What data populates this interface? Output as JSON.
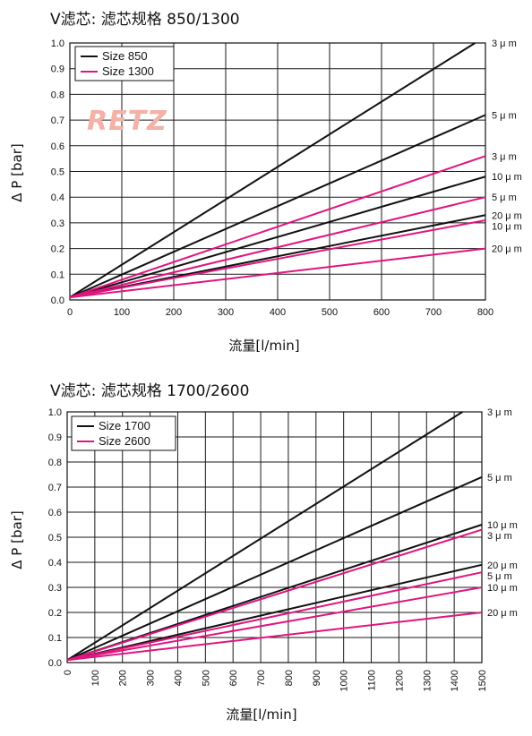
{
  "watermark": "RETZ",
  "colors": {
    "black": "#111111",
    "magenta": "#e0157f",
    "grid": "#1a1a1a",
    "watermark": "#f4b1a7"
  },
  "chart_data": [
    {
      "type": "line",
      "title": "V滤芯: 滤芯规格 850/1300",
      "xlabel": "流量[l/min]",
      "ylabel": "Δ P [bar]",
      "xlim": [
        0,
        800
      ],
      "ylim": [
        0,
        1.0
      ],
      "x_ticks": [
        "0",
        "100",
        "200",
        "300",
        "400",
        "500",
        "600",
        "700",
        "800"
      ],
      "y_ticks": [
        "0.0",
        "0.1",
        "0.2",
        "0.3",
        "0.4",
        "0.5",
        "0.6",
        "0.7",
        "0.8",
        "0.9",
        "1.0"
      ],
      "grid": true,
      "legend_position": "top-left",
      "legend": [
        {
          "name": "Size 850",
          "color": "#111111"
        },
        {
          "name": "Size 1300",
          "color": "#e0157f"
        }
      ],
      "series": [
        {
          "name": "Size 850",
          "label": "3 μ m",
          "color": "#111111",
          "x": [
            0,
            780
          ],
          "y": [
            0.01,
            1.0
          ]
        },
        {
          "name": "Size 850",
          "label": "5 μ m",
          "color": "#111111",
          "x": [
            0,
            800
          ],
          "y": [
            0.01,
            0.72
          ]
        },
        {
          "name": "Size 850",
          "label": "10 μ m",
          "color": "#111111",
          "x": [
            0,
            800
          ],
          "y": [
            0.01,
            0.48
          ]
        },
        {
          "name": "Size 850",
          "label": "20 μ m",
          "color": "#111111",
          "x": [
            0,
            800
          ],
          "y": [
            0.01,
            0.33
          ]
        },
        {
          "name": "Size 1300",
          "label": "3 μ m",
          "color": "#e0157f",
          "x": [
            0,
            800
          ],
          "y": [
            0.01,
            0.56
          ]
        },
        {
          "name": "Size 1300",
          "label": "5 μ m",
          "color": "#e0157f",
          "x": [
            0,
            800
          ],
          "y": [
            0.01,
            0.4
          ]
        },
        {
          "name": "Size 1300",
          "label": "10 μ m",
          "color": "#e0157f",
          "x": [
            0,
            800
          ],
          "y": [
            0.01,
            0.31
          ]
        },
        {
          "name": "Size 1300",
          "label": "20 μ m",
          "color": "#e0157f",
          "x": [
            0,
            800
          ],
          "y": [
            0.01,
            0.2
          ]
        }
      ]
    },
    {
      "type": "line",
      "title": "V滤芯: 滤芯规格 1700/2600",
      "xlabel": "流量[l/min]",
      "ylabel": "Δ P [bar]",
      "xlim": [
        0,
        1500
      ],
      "ylim": [
        0,
        1.0
      ],
      "x_ticks": [
        "0",
        "100",
        "200",
        "300",
        "400",
        "500",
        "600",
        "700",
        "800",
        "900",
        "1000",
        "1100",
        "1200",
        "1300",
        "1400",
        "1500"
      ],
      "y_ticks": [
        "0.0",
        "0.1",
        "0.2",
        "0.3",
        "0.4",
        "0.5",
        "0.6",
        "0.7",
        "0.8",
        "0.9",
        "1.0"
      ],
      "grid": true,
      "legend_position": "top-left",
      "legend": [
        {
          "name": "Size 1700",
          "color": "#111111"
        },
        {
          "name": "Size 2600",
          "color": "#e0157f"
        }
      ],
      "series": [
        {
          "name": "Size 1700",
          "label": "3 μ m",
          "color": "#111111",
          "x": [
            0,
            1430
          ],
          "y": [
            0.01,
            1.0
          ]
        },
        {
          "name": "Size 1700",
          "label": "5 μ m",
          "color": "#111111",
          "x": [
            0,
            1500
          ],
          "y": [
            0.01,
            0.74
          ]
        },
        {
          "name": "Size 1700",
          "label": "10 μ m",
          "color": "#111111",
          "x": [
            0,
            1500
          ],
          "y": [
            0.01,
            0.55
          ]
        },
        {
          "name": "Size 1700",
          "label": "20 μ m",
          "color": "#111111",
          "x": [
            0,
            1500
          ],
          "y": [
            0.01,
            0.39
          ]
        },
        {
          "name": "Size 2600",
          "label": "3 μ m",
          "color": "#e0157f",
          "x": [
            0,
            1500
          ],
          "y": [
            0.01,
            0.53
          ]
        },
        {
          "name": "Size 2600",
          "label": "5 μ m",
          "color": "#e0157f",
          "x": [
            0,
            1500
          ],
          "y": [
            0.01,
            0.36
          ]
        },
        {
          "name": "Size 2600",
          "label": "10 μ m",
          "color": "#e0157f",
          "x": [
            0,
            1500
          ],
          "y": [
            0.01,
            0.3
          ]
        },
        {
          "name": "Size 2600",
          "label": "20 μ m",
          "color": "#e0157f",
          "x": [
            0,
            1500
          ],
          "y": [
            0.01,
            0.2
          ]
        }
      ]
    }
  ]
}
